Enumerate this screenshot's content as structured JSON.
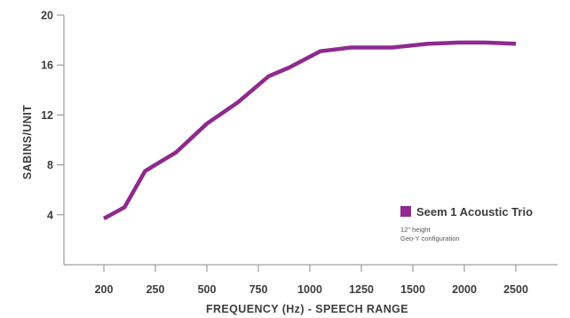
{
  "chart_data": {
    "type": "line",
    "xlabel": "FREQUENCY (Hz) - SPEECH RANGE",
    "ylabel": "SABINS/UNIT",
    "categories": [
      "200",
      "250",
      "500",
      "750",
      "1000",
      "1250",
      "1500",
      "2000",
      "2500"
    ],
    "ylim": [
      0,
      20
    ],
    "yticks": [
      4,
      8,
      12,
      16,
      20
    ],
    "x": [
      0,
      0.4,
      0.8,
      1.4,
      2,
      2.6,
      3.2,
      3.6,
      4.2,
      4.8,
      5.6,
      6.3,
      6.9,
      7.4,
      8
    ],
    "series": [
      {
        "name": "Seem 1 Acoustic Trio",
        "values": [
          3.7,
          4.6,
          7.5,
          9.0,
          11.3,
          13.0,
          15.1,
          15.8,
          17.1,
          17.4,
          17.4,
          17.7,
          17.8,
          17.8,
          17.7
        ],
        "color": "#8e2a8e"
      }
    ],
    "legend": {
      "position": "bottom-right",
      "notes": [
        "12\" height",
        "Geo-Y configuration"
      ]
    },
    "grid": false
  }
}
